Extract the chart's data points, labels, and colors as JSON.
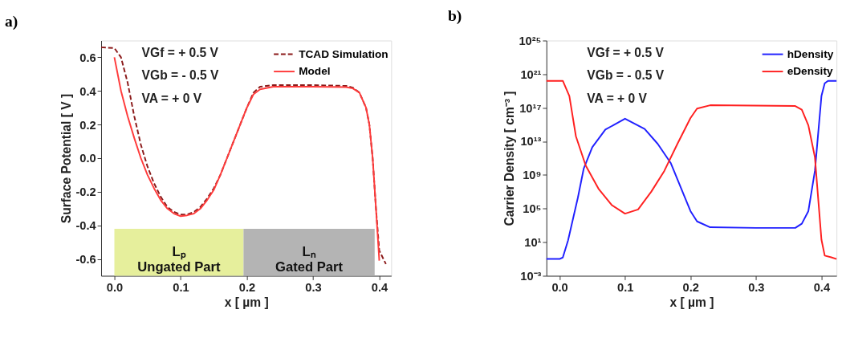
{
  "chart_data": [
    {
      "type": "line",
      "title": "a)",
      "xlabel": "x [ µm ]",
      "ylabel": "Surface Potential [ V ]",
      "xlim": [
        -0.02,
        0.418
      ],
      "ylim": [
        -0.7,
        0.7
      ],
      "xticks": [
        {
          "value": 0,
          "label": "0.0"
        },
        0.1,
        0.2,
        0.3,
        0.4
      ],
      "yticks": [
        -0.6,
        -0.4,
        -0.2,
        {
          "value": 0,
          "label": "0.0"
        },
        0.2,
        0.4,
        0.6
      ],
      "annotations": [
        "VGf = + 0.5 V",
        "VGb = - 0.5 V",
        "VA = + 0 V"
      ],
      "bands": [
        {
          "axis": "x",
          "from": 0,
          "to": 0.195,
          "label": "Lₚ Ungated Part",
          "color": "#e6ef9c"
        },
        {
          "axis": "x",
          "from": 0.195,
          "to": 0.393,
          "label": "Lₙ Gated Part",
          "color": "#b4b4b4"
        }
      ],
      "legend": "top right",
      "grid": false,
      "series": [
        {
          "name": "TCAD Simulation",
          "color": "#8b1a1a",
          "line_style": "dashed",
          "x": [
            -0.02,
            0,
            0.01,
            0.02,
            0.03,
            0.04,
            0.05,
            0.06,
            0.07,
            0.08,
            0.09,
            0.1,
            0.11,
            0.12,
            0.13,
            0.14,
            0.15,
            0.16,
            0.17,
            0.18,
            0.19,
            0.2,
            0.21,
            0.22,
            0.24,
            0.3,
            0.35,
            0.36,
            0.37,
            0.38,
            0.385,
            0.39,
            0.395,
            0.4,
            0.41
          ],
          "values": [
            0.66,
            0.655,
            0.6,
            0.45,
            0.25,
            0.08,
            -0.05,
            -0.15,
            -0.23,
            -0.29,
            -0.32,
            -0.335,
            -0.335,
            -0.32,
            -0.29,
            -0.24,
            -0.18,
            -0.1,
            0.0,
            0.1,
            0.2,
            0.3,
            0.39,
            0.425,
            0.435,
            0.435,
            0.43,
            0.42,
            0.39,
            0.3,
            0.2,
            0.0,
            -0.3,
            -0.55,
            -0.63
          ]
        },
        {
          "name": "Model",
          "color": "#ff3b3b",
          "line_style": "solid",
          "x": [
            0,
            0.01,
            0.02,
            0.03,
            0.04,
            0.05,
            0.06,
            0.07,
            0.08,
            0.09,
            0.1,
            0.11,
            0.12,
            0.13,
            0.14,
            0.15,
            0.16,
            0.17,
            0.18,
            0.19,
            0.2,
            0.21,
            0.22,
            0.24,
            0.3,
            0.35,
            0.36,
            0.37,
            0.38,
            0.385,
            0.39,
            0.395,
            0.4
          ],
          "values": [
            0.6,
            0.4,
            0.25,
            0.12,
            0.0,
            -0.1,
            -0.18,
            -0.25,
            -0.3,
            -0.33,
            -0.345,
            -0.34,
            -0.33,
            -0.3,
            -0.25,
            -0.19,
            -0.1,
            0.0,
            0.1,
            0.2,
            0.3,
            0.38,
            0.41,
            0.425,
            0.425,
            0.423,
            0.415,
            0.39,
            0.3,
            0.2,
            0.0,
            -0.3,
            -0.61
          ]
        }
      ]
    },
    {
      "type": "line",
      "title": "b)",
      "xlabel": "x [ µm ]",
      "ylabel": "Carrier Density [ cm⁻³ ]",
      "log": "y",
      "xlim": [
        -0.02,
        0.423
      ],
      "ylim": [
        0.001,
        1e+25
      ],
      "xticks": [
        {
          "value": 0,
          "label": "0.0"
        },
        0.1,
        0.2,
        0.3,
        0.4
      ],
      "yticks": [
        {
          "value": 0.001,
          "label": "10⁻³"
        },
        {
          "value": 10,
          "label": "10¹"
        },
        {
          "value": 100000.0,
          "label": "10⁵"
        },
        {
          "value": 1000000000.0,
          "label": "10⁹"
        },
        {
          "value": 10000000000000.0,
          "label": "10¹³"
        },
        {
          "value": 1e+17,
          "label": "10¹⁷"
        },
        {
          "value": 1e+21,
          "label": "10²¹"
        },
        {
          "value": 1e+25,
          "label": "10²⁵"
        }
      ],
      "annotations": [
        "VGf = + 0.5 V",
        "VGb = - 0.5 V",
        "VA = + 0 V"
      ],
      "legend": "top right",
      "grid": false,
      "series": [
        {
          "name": "hDensity",
          "color": "#2020ff",
          "line_style": "solid",
          "x": [
            -0.02,
            0.0,
            0.005,
            0.013,
            0.028,
            0.037,
            0.05,
            0.07,
            0.1,
            0.13,
            0.15,
            0.17,
            0.19,
            0.2,
            0.21,
            0.23,
            0.3,
            0.36,
            0.37,
            0.38,
            0.39,
            0.4,
            0.405,
            0.41,
            0.423
          ],
          "values": [
            0.1,
            0.1,
            0.15,
            16,
            2000000.0,
            6000000000.0,
            2000000000000.0,
            250000000000000.0,
            5000000000000000.0,
            300000000000000.0,
            5000000000000.0,
            25000000000.0,
            4000000.0,
            50000.0,
            3000.0,
            600,
            500,
            500,
            1600,
            50000.0,
            3000000000.0,
            2.5e+18,
            8e+19,
            1.6e+20,
            1.6e+20
          ]
        },
        {
          "name": "eDensity",
          "color": "#ff2020",
          "line_style": "solid",
          "x": [
            -0.02,
            0.005,
            0.015,
            0.025,
            0.04,
            0.06,
            0.08,
            0.1,
            0.12,
            0.14,
            0.16,
            0.18,
            0.2,
            0.21,
            0.23,
            0.36,
            0.37,
            0.38,
            0.39,
            0.4,
            0.405,
            0.415,
            0.423
          ],
          "values": [
            1.6e+20,
            1.6e+20,
            2.5e+18,
            40000000000000.0,
            13000000000.0,
            20000000.0,
            250000.0,
            25000.0,
            80000.0,
            10000000.0,
            3000000000.0,
            5000000000000.0,
            6000000000000000.0,
            8e+16,
            2e+17,
            1.6e+17,
            6e+16,
            800000000000000.0,
            130000000000.0,
            20,
            0.25,
            0.16,
            0.1
          ]
        }
      ]
    }
  ]
}
